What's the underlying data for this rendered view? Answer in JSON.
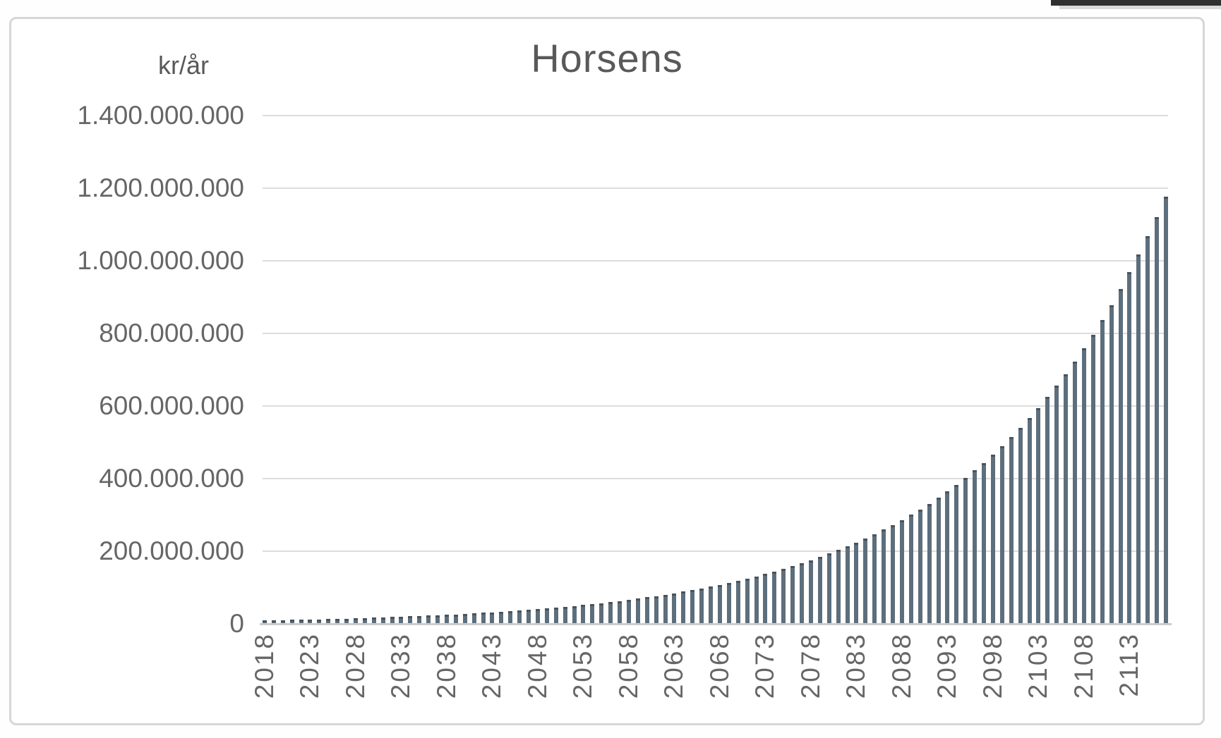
{
  "window_artifact": {
    "description": "dark-window-edge-strip-top-right"
  },
  "chart_data": {
    "type": "bar",
    "title": "Horsens",
    "y_unit_label": "kr/år",
    "xlabel": "",
    "ylabel": "kr/år",
    "ylim": [
      0,
      1400000000
    ],
    "y_tick_step": 200000000,
    "y_tick_labels": [
      "1.400.000.000",
      "1.200.000.000",
      "1.000.000.000",
      "800.000.000",
      "600.000.000",
      "400.000.000",
      "200.000.000",
      "0"
    ],
    "x_tick_labels": [
      "2018",
      "2023",
      "2028",
      "2033",
      "2038",
      "2043",
      "2048",
      "2053",
      "2058",
      "2063",
      "2068",
      "2073",
      "2078",
      "2083",
      "2088",
      "2093",
      "2098",
      "2103",
      "2108",
      "2113"
    ],
    "year_start": 2018,
    "year_end": 2117,
    "grid": "horizontal",
    "legend": "none",
    "colors": {
      "bar": "#5d6e7c",
      "bar_cap": "#49545d",
      "grid": "#dcdcdc",
      "axis": "#cccccc",
      "text": "#666666",
      "title": "#595959"
    },
    "values": [
      9400000,
      9870000,
      10360000,
      10880000,
      11430000,
      12000000,
      12600000,
      13230000,
      13890000,
      14580000,
      15310000,
      16080000,
      16880000,
      17730000,
      18610000,
      19540000,
      20520000,
      21540000,
      22620000,
      23750000,
      24940000,
      26190000,
      27500000,
      28870000,
      30320000,
      31830000,
      33420000,
      35090000,
      36850000,
      38690000,
      40630000,
      42660000,
      44790000,
      47030000,
      49380000,
      51850000,
      54440000,
      57170000,
      60020000,
      63020000,
      66180000,
      69480000,
      72960000,
      76610000,
      80440000,
      84460000,
      88680000,
      93120000,
      97770000,
      102660000,
      107790000,
      113180000,
      118840000,
      124780000,
      131020000,
      137570000,
      144450000,
      151680000,
      159260000,
      167220000,
      175580000,
      184360000,
      193580000,
      203260000,
      213420000,
      224100000,
      235300000,
      247060000,
      259420000,
      272390000,
      286010000,
      300310000,
      315320000,
      331090000,
      347640000,
      365030000,
      383280000,
      402440000,
      422560000,
      443690000,
      465880000,
      489170000,
      513630000,
      539310000,
      566280000,
      594590000,
      624320000,
      655540000,
      688310000,
      722730000,
      758870000,
      796810000,
      836650000,
      878480000,
      922410000,
      968530000,
      1016950000,
      1067800000,
      1121190000,
      1177250000
    ]
  }
}
